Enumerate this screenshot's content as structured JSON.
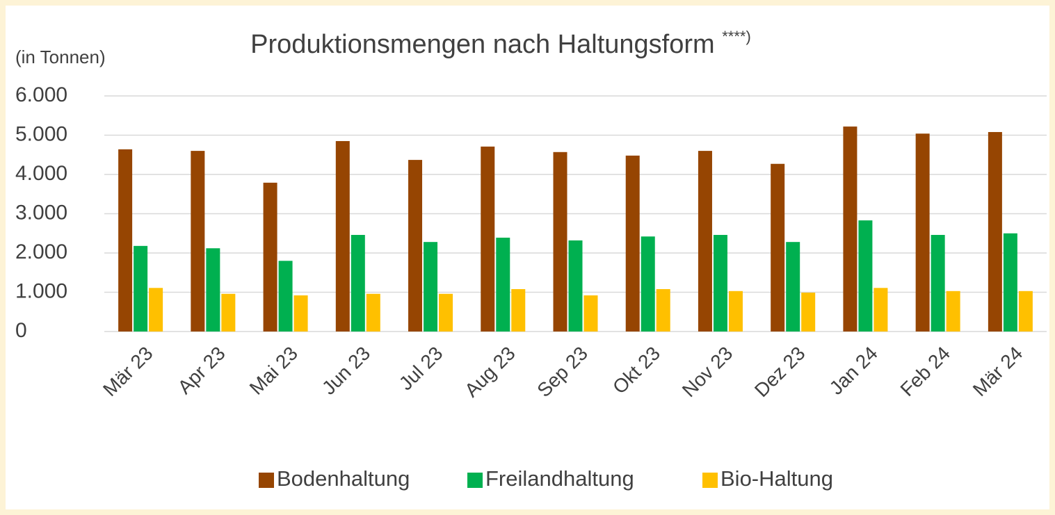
{
  "chart_data": {
    "type": "bar",
    "title": "Produktionsmengen nach Haltungsform",
    "title_note": "****)",
    "y_label": "(in Tonnen)",
    "categories": [
      "Mär 23",
      "Apr 23",
      "Mai 23",
      "Jun 23",
      "Jul 23",
      "Aug 23",
      "Sep 23",
      "Okt 23",
      "Nov 23",
      "Dez 23",
      "Jan 24",
      "Feb 24",
      "Mär 24"
    ],
    "series": [
      {
        "name": "Bodenhaltung",
        "color": "#964502",
        "values": [
          4640,
          4600,
          3790,
          4850,
          4370,
          4710,
          4570,
          4480,
          4600,
          4270,
          5220,
          5040,
          5080
        ]
      },
      {
        "name": "Freilandhaltung",
        "color": "#00b050",
        "values": [
          2180,
          2120,
          1800,
          2460,
          2280,
          2390,
          2320,
          2420,
          2460,
          2280,
          2830,
          2460,
          2500
        ]
      },
      {
        "name": "Bio-Haltung",
        "color": "#ffc000",
        "values": [
          1110,
          960,
          920,
          960,
          960,
          1080,
          920,
          1080,
          1030,
          990,
          1110,
          1030,
          1030
        ]
      }
    ],
    "ylim": [
      0,
      6000
    ],
    "yticks": [
      0,
      {
        "value": 1000,
        "label": "1.000"
      },
      {
        "value": 2000,
        "label": "2.000"
      },
      {
        "value": 3000,
        "label": "3.000"
      },
      {
        "value": 4000,
        "label": "4.000"
      },
      {
        "value": 5000,
        "label": "5.000"
      },
      {
        "value": 6000,
        "label": "6.000"
      }
    ],
    "grid": true,
    "legend": "bottom"
  }
}
